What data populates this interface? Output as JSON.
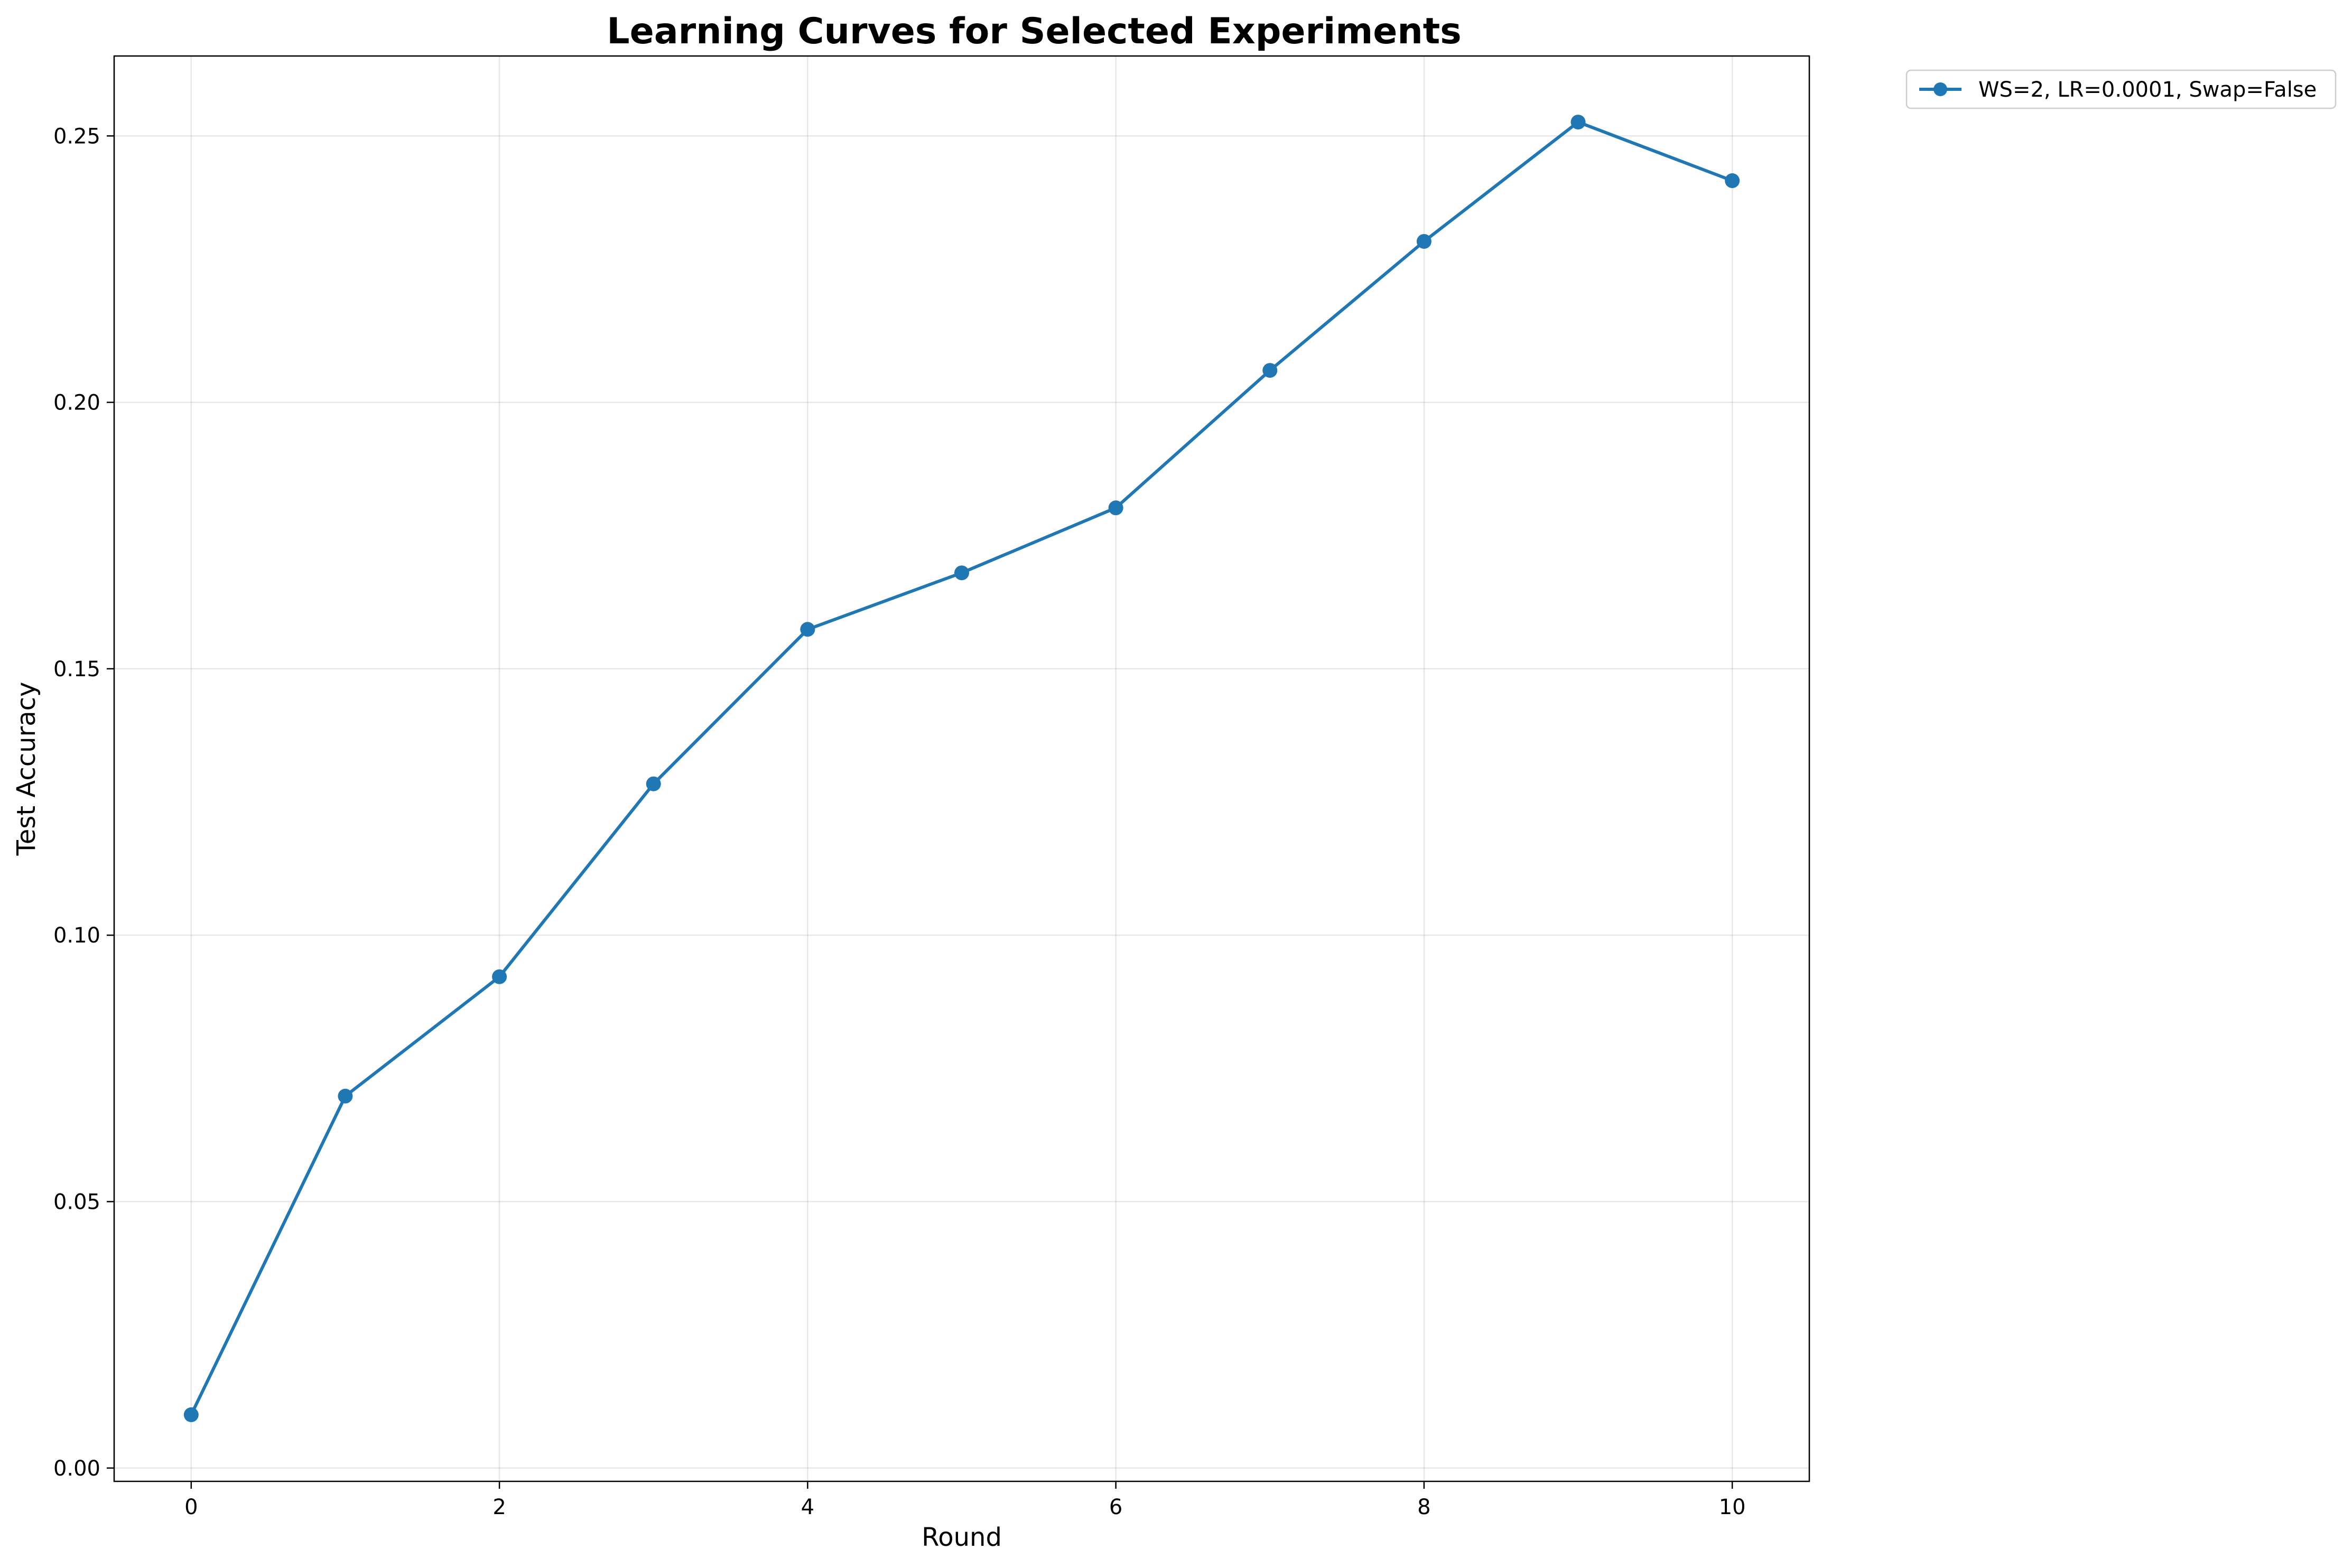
{
  "chart_data": {
    "type": "line",
    "title": "Learning Curves for Selected Experiments",
    "xlabel": "Round",
    "ylabel": "Test Accuracy",
    "xlim": [
      -0.5,
      10.5
    ],
    "ylim": [
      -0.0025,
      0.265
    ],
    "xticks": [
      0,
      2,
      4,
      6,
      8,
      10
    ],
    "xtick_labels": [
      "0",
      "2",
      "4",
      "6",
      "8",
      "10"
    ],
    "yticks": [
      0.0,
      0.05,
      0.1,
      0.15,
      0.2,
      0.25
    ],
    "ytick_labels": [
      "0.00",
      "0.05",
      "0.10",
      "0.15",
      "0.20",
      "0.25"
    ],
    "grid": true,
    "legend_position": "outside-top-right",
    "series": [
      {
        "name": "WS=2, LR=0.0001, Swap=False",
        "color": "#1f77b4",
        "marker": "circle",
        "x": [
          0,
          1,
          2,
          3,
          4,
          5,
          6,
          7,
          8,
          9,
          10
        ],
        "y": [
          0.01,
          0.0698,
          0.0922,
          0.1284,
          0.1574,
          0.168,
          0.1802,
          0.206,
          0.2302,
          0.2526,
          0.2416
        ]
      }
    ]
  }
}
